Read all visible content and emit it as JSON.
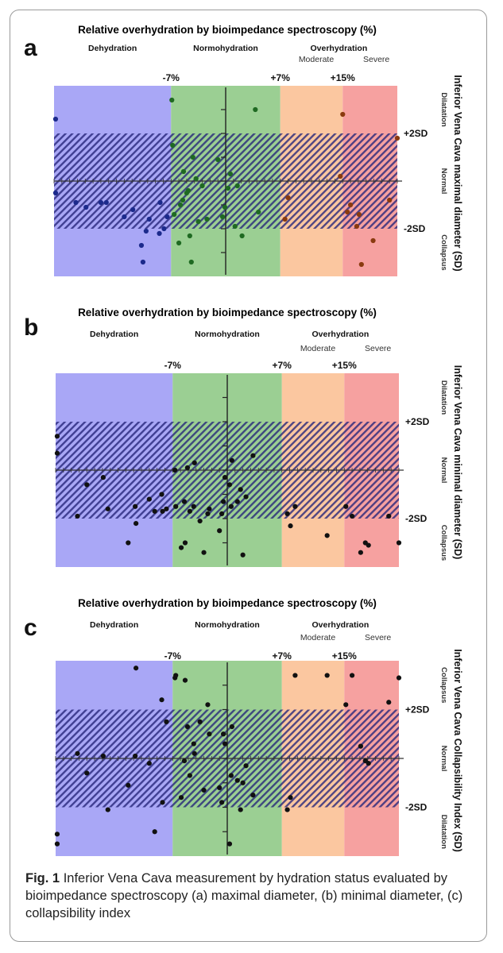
{
  "figure": {
    "caption": {
      "label": "Fig. 1",
      "text": "Inferior Vena Cava measurement by hydration status evaluated by bioimpedance spectroscopy (a) maximal diameter, (b) minimal diameter, (c) collapsibility index"
    }
  },
  "colors": {
    "dehydration": "#a9a7f6",
    "normohydration": "#9bcf93",
    "moderate": "#fbc7a0",
    "severe": "#f6a1a0",
    "band_stripe": "#26267a"
  },
  "chart_data": [
    {
      "type": "scatter",
      "panel_letter": "a",
      "title": "Relative overhydration by bioimpedance spectroscopy (%)",
      "zones": [
        "Dehydration",
        "Normohydration",
        "Overhydration"
      ],
      "overhydration_subzones": [
        "Moderate",
        "Severe"
      ],
      "thresholds": [
        "-7%",
        "+7%",
        "+15%"
      ],
      "threshold_values": [
        -7,
        7,
        15
      ],
      "xlim": [
        -22,
        22
      ],
      "ylim": [
        -4,
        4
      ],
      "ylabel": "Inferior Vena Cava maximal diameter (SD)",
      "reference_lines": [
        "+2SD",
        "-2SD"
      ],
      "reference_values": [
        2,
        -2
      ],
      "zone_labels_right": [
        "Dilatation",
        "Normal",
        "Collapsus"
      ],
      "point_color": "#1c2a8c",
      "x": [
        -21.8,
        -21.8,
        -19.2,
        -17.9,
        -16.0,
        -15.3,
        -13.0,
        -11.9,
        -10.8,
        -10.6,
        -10.2,
        -9.8,
        -8.5,
        -8.4,
        -7.9,
        -7.5,
        -6.9,
        -6.8,
        -6.6,
        -6.0,
        -5.8,
        -5.5,
        -5.4,
        -5.0,
        -4.8,
        -4.6,
        -4.4,
        -4.2,
        -3.8,
        -3.5,
        -3.0,
        -2.4,
        -1.0,
        -0.4,
        -0.1,
        0.3,
        0.6,
        1.2,
        1.5,
        2.1,
        3.8,
        4.2,
        7.6,
        8.0,
        14.7,
        15.0,
        15.6,
        16.0,
        16.8,
        17.1,
        17.4,
        18.9,
        21.0,
        22.0
      ],
      "y": [
        2.6,
        -0.5,
        -0.9,
        -1.1,
        -0.9,
        -0.9,
        -1.5,
        -1.2,
        -2.7,
        -3.4,
        -2.1,
        -1.6,
        -2.2,
        -0.9,
        -2.0,
        -1.5,
        3.4,
        1.5,
        -1.4,
        -2.6,
        -1.0,
        -0.8,
        0.4,
        -0.5,
        -0.4,
        -2.3,
        -3.4,
        1.0,
        0.1,
        -1.7,
        -0.2,
        -1.6,
        0.9,
        -1.5,
        -1.1,
        -0.3,
        0.3,
        -1.9,
        -0.2,
        -2.3,
        3.0,
        -1.3,
        -1.6,
        -0.7,
        0.2,
        2.8,
        -1.3,
        -1.0,
        -1.9,
        -1.4,
        -3.5,
        -2.5,
        -0.8,
        1.8
      ]
    },
    {
      "type": "scatter",
      "panel_letter": "b",
      "title": "Relative overhydration by bioimpedance spectroscopy (%)",
      "zones": [
        "Dehydration",
        "Normohydration",
        "Overhydration"
      ],
      "overhydration_subzones": [
        "Moderate",
        "Severe"
      ],
      "thresholds": [
        "-7%",
        "+7%",
        "+15%"
      ],
      "threshold_values": [
        -7,
        7,
        15
      ],
      "xlim": [
        -22,
        22
      ],
      "ylim": [
        -4,
        4
      ],
      "ylabel": "Inferior Vena Cava minimal diameter (SD)",
      "reference_lines": [
        "+2SD",
        "-2SD"
      ],
      "reference_values": [
        2,
        -2
      ],
      "zone_labels_right": [
        "Dilatation",
        "Normal",
        "Collapsus"
      ],
      "point_color": "#111111",
      "x": [
        -21.8,
        -21.8,
        -19.2,
        -18.0,
        -15.9,
        -15.3,
        -12.7,
        -11.8,
        -11.7,
        -10.0,
        -9.3,
        -8.4,
        -8.3,
        -7.8,
        -6.7,
        -6.6,
        -5.9,
        -5.5,
        -5.4,
        -5.1,
        -4.8,
        -4.3,
        -4.2,
        -3.5,
        -3.0,
        -2.5,
        -2.3,
        -1.0,
        -0.7,
        -0.5,
        -0.3,
        0.3,
        0.5,
        0.6,
        1.3,
        1.7,
        2.0,
        2.4,
        3.3,
        7.7,
        8.1,
        8.7,
        12.8,
        15.2,
        16.0,
        17.1,
        17.7,
        18.1,
        20.7,
        22.0
      ],
      "y": [
        1.4,
        0.7,
        -1.9,
        -0.6,
        -0.3,
        -1.6,
        -3.0,
        -1.5,
        -2.2,
        -1.2,
        -1.7,
        -1.0,
        -1.7,
        -1.6,
        0.0,
        -1.5,
        -3.2,
        -1.3,
        -3.0,
        0.1,
        -1.7,
        -1.5,
        0.3,
        -2.1,
        -3.4,
        -1.8,
        -1.6,
        -2.5,
        -1.8,
        -1.3,
        -0.3,
        -0.6,
        -1.5,
        0.4,
        -1.3,
        -0.8,
        -3.5,
        -1.1,
        0.6,
        -1.8,
        -2.3,
        -1.5,
        -2.7,
        -1.5,
        -1.9,
        -3.4,
        -3.0,
        -3.1,
        -1.9,
        -3.0
      ]
    },
    {
      "type": "scatter",
      "panel_letter": "c",
      "title": "Relative overhydration by bioimpedance spectroscopy (%)",
      "zones": [
        "Dehydration",
        "Normohydration",
        "Overhydration"
      ],
      "overhydration_subzones": [
        "Moderate",
        "Severe"
      ],
      "thresholds": [
        "-7%",
        "+7%",
        "+15%"
      ],
      "threshold_values": [
        -7,
        7,
        15
      ],
      "xlim": [
        -22,
        22
      ],
      "ylim": [
        -4,
        4
      ],
      "ylabel": "Inferior Vena Cava Collapsibility Index (SD)",
      "reference_lines": [
        "+2SD",
        "-2SD"
      ],
      "reference_values": [
        2,
        -2
      ],
      "zone_labels_right": [
        "Collapsus",
        "Normal",
        "Dilatation"
      ],
      "point_color": "#111111",
      "x": [
        -21.8,
        -21.8,
        -19.2,
        -18.0,
        -15.9,
        -15.3,
        -12.7,
        -11.8,
        -11.7,
        -10.0,
        -9.3,
        -8.4,
        -8.3,
        -7.8,
        -6.7,
        -6.6,
        -5.9,
        -5.5,
        -5.4,
        -5.1,
        -4.8,
        -4.3,
        -4.2,
        -3.5,
        -3.0,
        -2.5,
        -2.3,
        -1.0,
        -0.7,
        -0.5,
        -0.3,
        0.3,
        0.5,
        0.6,
        1.3,
        1.7,
        2.0,
        2.4,
        3.3,
        7.7,
        8.1,
        8.7,
        12.8,
        15.2,
        16.0,
        17.1,
        17.7,
        18.1,
        20.7,
        22.0
      ],
      "y": [
        -3.1,
        -3.5,
        0.2,
        -0.6,
        0.1,
        -2.1,
        -1.1,
        0.1,
        3.7,
        -0.2,
        -3.0,
        2.4,
        -1.8,
        1.5,
        3.3,
        3.4,
        -1.6,
        -0.1,
        3.2,
        1.3,
        -0.7,
        0.6,
        0.2,
        1.5,
        -1.3,
        2.2,
        1.0,
        -1.2,
        -1.8,
        1.0,
        0.6,
        -3.5,
        -0.7,
        1.3,
        -0.9,
        -2.1,
        -1.0,
        -0.3,
        -1.5,
        -2.1,
        -1.6,
        3.4,
        3.4,
        2.2,
        3.4,
        0.5,
        -0.1,
        -0.2,
        2.3,
        3.3
      ]
    }
  ]
}
